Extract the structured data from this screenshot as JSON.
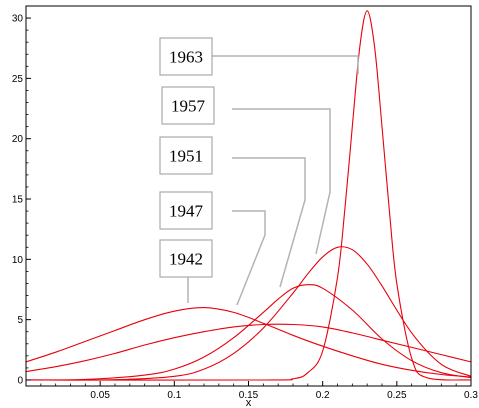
{
  "chart_data": {
    "type": "line",
    "title": "",
    "xlabel": "x",
    "ylabel": "",
    "xlim": [
      0,
      0.3
    ],
    "ylim": [
      -0.5,
      31
    ],
    "x_ticks": [
      {
        "value": 0.05,
        "label": "0.05"
      },
      {
        "value": 0.1,
        "label": "0.1"
      },
      {
        "value": 0.15,
        "label": "0.15"
      },
      {
        "value": 0.2,
        "label": "0.2"
      },
      {
        "value": 0.25,
        "label": "0.25"
      },
      {
        "value": 0.3,
        "label": "0.3"
      }
    ],
    "y_ticks": [
      {
        "value": 0,
        "label": "0"
      },
      {
        "value": 5,
        "label": "5"
      },
      {
        "value": 10,
        "label": "10"
      },
      {
        "value": 15,
        "label": "15"
      },
      {
        "value": 20,
        "label": "20"
      },
      {
        "value": 25,
        "label": "25"
      },
      {
        "value": 30,
        "label": "30"
      }
    ],
    "grid": false,
    "legend": "none",
    "line_color": "#e8000b",
    "label_box_color": "#aaaaaa",
    "leader_line_color": "#b3b3b3",
    "series": [
      {
        "name": "1942",
        "x": [
          0,
          0.02,
          0.04,
          0.06,
          0.08,
          0.1,
          0.12,
          0.14,
          0.16,
          0.18,
          0.2,
          0.22,
          0.24,
          0.26,
          0.28,
          0.3
        ],
        "y": [
          1.5,
          2.3,
          3.2,
          4.1,
          5.0,
          5.7,
          6.0,
          5.6,
          4.7,
          3.7,
          2.8,
          2.0,
          1.3,
          0.8,
          0.45,
          0.25
        ]
      },
      {
        "name": "1947",
        "x": [
          0,
          0.02,
          0.04,
          0.06,
          0.08,
          0.1,
          0.12,
          0.14,
          0.16,
          0.18,
          0.2,
          0.22,
          0.24,
          0.26,
          0.28,
          0.3
        ],
        "y": [
          0.7,
          1.1,
          1.6,
          2.2,
          2.9,
          3.5,
          4.0,
          4.4,
          4.6,
          4.6,
          4.4,
          3.9,
          3.3,
          2.7,
          2.1,
          1.5
        ]
      },
      {
        "name": "1951",
        "x": [
          0,
          0.04,
          0.08,
          0.1,
          0.12,
          0.14,
          0.16,
          0.17,
          0.18,
          0.19,
          0.2,
          0.22,
          0.24,
          0.26,
          0.28,
          0.3
        ],
        "y": [
          0,
          0.05,
          0.4,
          0.9,
          1.9,
          3.5,
          5.6,
          6.7,
          7.6,
          7.9,
          7.6,
          5.8,
          3.4,
          1.6,
          0.6,
          0.2
        ]
      },
      {
        "name": "1957",
        "x": [
          0,
          0.06,
          0.1,
          0.12,
          0.14,
          0.16,
          0.18,
          0.19,
          0.2,
          0.21,
          0.22,
          0.23,
          0.24,
          0.26,
          0.28,
          0.3
        ],
        "y": [
          0,
          0.02,
          0.3,
          0.9,
          2.2,
          4.3,
          7.2,
          8.8,
          10.2,
          11.0,
          10.8,
          9.6,
          7.8,
          3.9,
          1.3,
          0.3
        ]
      },
      {
        "name": "1963",
        "x": [
          0,
          0.16,
          0.18,
          0.19,
          0.2,
          0.21,
          0.215,
          0.22,
          0.225,
          0.23,
          0.235,
          0.24,
          0.245,
          0.25,
          0.26,
          0.27,
          0.3
        ],
        "y": [
          0,
          0,
          0.1,
          0.6,
          2.4,
          8.5,
          14.2,
          21.0,
          27.6,
          30.6,
          27.6,
          21.0,
          14.0,
          8.0,
          1.8,
          0.2,
          0
        ]
      }
    ]
  }
}
